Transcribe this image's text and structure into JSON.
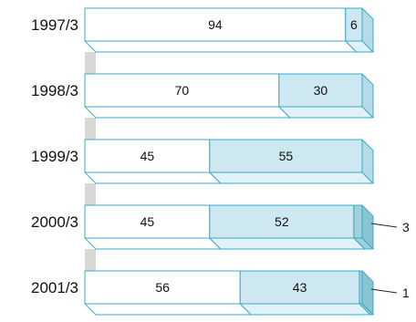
{
  "chart_data": {
    "type": "bar",
    "orientation": "horizontal",
    "stacked": true,
    "categories": [
      "1997/3",
      "1998/3",
      "1999/3",
      "2000/3",
      "2001/3"
    ],
    "series": [
      {
        "values": [
          94,
          70,
          45,
          45,
          56
        ]
      },
      {
        "values": [
          6,
          30,
          55,
          52,
          43
        ]
      },
      {
        "values": [
          0,
          0,
          0,
          3,
          1
        ]
      }
    ],
    "labels": [
      [
        "94",
        "6",
        ""
      ],
      [
        "70",
        "30",
        ""
      ],
      [
        "45",
        "55",
        ""
      ],
      [
        "45",
        "52",
        "3"
      ],
      [
        "56",
        "43",
        "1"
      ]
    ],
    "xlim": [
      0,
      100
    ],
    "grid": false,
    "legend": "none",
    "colors": {
      "white_segment": "#ffffff",
      "blue_segment": "#cde8f0",
      "blue_side": "#b4dbe7",
      "blue_top": "#e1f1f6",
      "teal_segment": "#9fd0dc",
      "teal_side": "#88c4d3",
      "connector": "#d9d7d3",
      "stroke": "#3fa8c6"
    }
  }
}
